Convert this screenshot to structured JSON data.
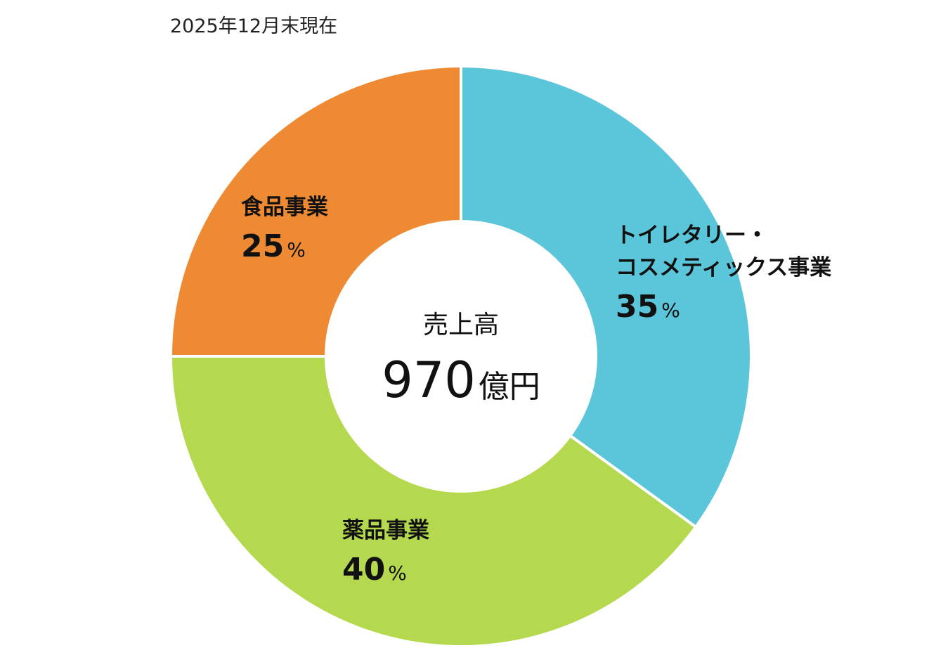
{
  "chart_data": {
    "type": "donut",
    "subtitle": "2025年12月末現在",
    "categories": [
      "トイレタリー・\nコスメティックス事業",
      "薬品事業",
      "食品事業"
    ],
    "values": [
      35,
      40,
      25
    ],
    "value_labels": [
      "35%",
      "40%",
      "25%"
    ],
    "colors": [
      "#5bc5d9",
      "#b4d94e",
      "#ee8a33"
    ],
    "center_title": "売上高",
    "center_value": "970億円"
  }
}
